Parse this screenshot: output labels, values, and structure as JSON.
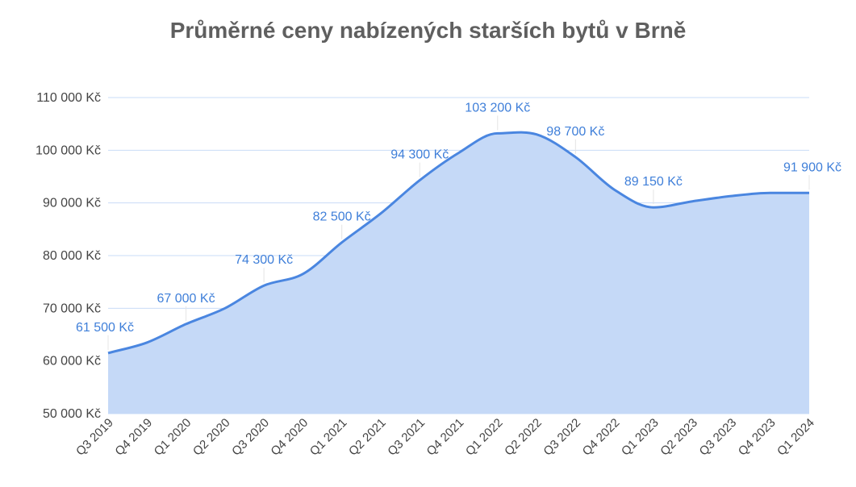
{
  "chart_data": {
    "type": "area",
    "title": "Průměrné ceny nabízených starších bytů v Brně",
    "xlabel": "",
    "ylabel": "",
    "ylim": [
      50000,
      110000
    ],
    "yticks": [
      50000,
      60000,
      70000,
      80000,
      90000,
      100000,
      110000
    ],
    "ytick_labels": [
      "50 000 Kč",
      "60 000 Kč",
      "70 000 Kč",
      "80 000 Kč",
      "90 000 Kč",
      "100 000 Kč",
      "110 000 Kč"
    ],
    "categories": [
      "Q3 2019",
      "Q4 2019",
      "Q1 2020",
      "Q2 2020",
      "Q3 2020",
      "Q4 2020",
      "Q1 2021",
      "Q2 2021",
      "Q3 2021",
      "Q4 2021",
      "Q1 2022",
      "Q2 2022",
      "Q3 2022",
      "Q4 2022",
      "Q1 2023",
      "Q2 2023",
      "Q3 2023",
      "Q4 2023",
      "Q1 2024"
    ],
    "values": [
      61500,
      63500,
      67000,
      70000,
      74300,
      76500,
      82500,
      88000,
      94300,
      99500,
      103200,
      103000,
      98700,
      92500,
      89150,
      90300,
      91300,
      91900,
      91900
    ],
    "data_labels": [
      {
        "index": 0,
        "text": "61 500 Kč"
      },
      {
        "index": 2,
        "text": "67 000 Kč"
      },
      {
        "index": 4,
        "text": "74 300 Kč"
      },
      {
        "index": 6,
        "text": "82 500 Kč"
      },
      {
        "index": 8,
        "text": "94 300 Kč"
      },
      {
        "index": 10,
        "text": "103 200 Kč"
      },
      {
        "index": 12,
        "text": "98 700 Kč"
      },
      {
        "index": 14,
        "text": "89 150 Kč"
      },
      {
        "index": 18,
        "text": "91 900 Kč"
      }
    ],
    "grid": true,
    "legend": "none",
    "colors": {
      "line": "#4a86e0",
      "fill": "#c5d9f7",
      "grid": "#c9dcf7",
      "label": "#3f7fd9",
      "title": "#5f5f5f",
      "tick": "#444444"
    }
  }
}
